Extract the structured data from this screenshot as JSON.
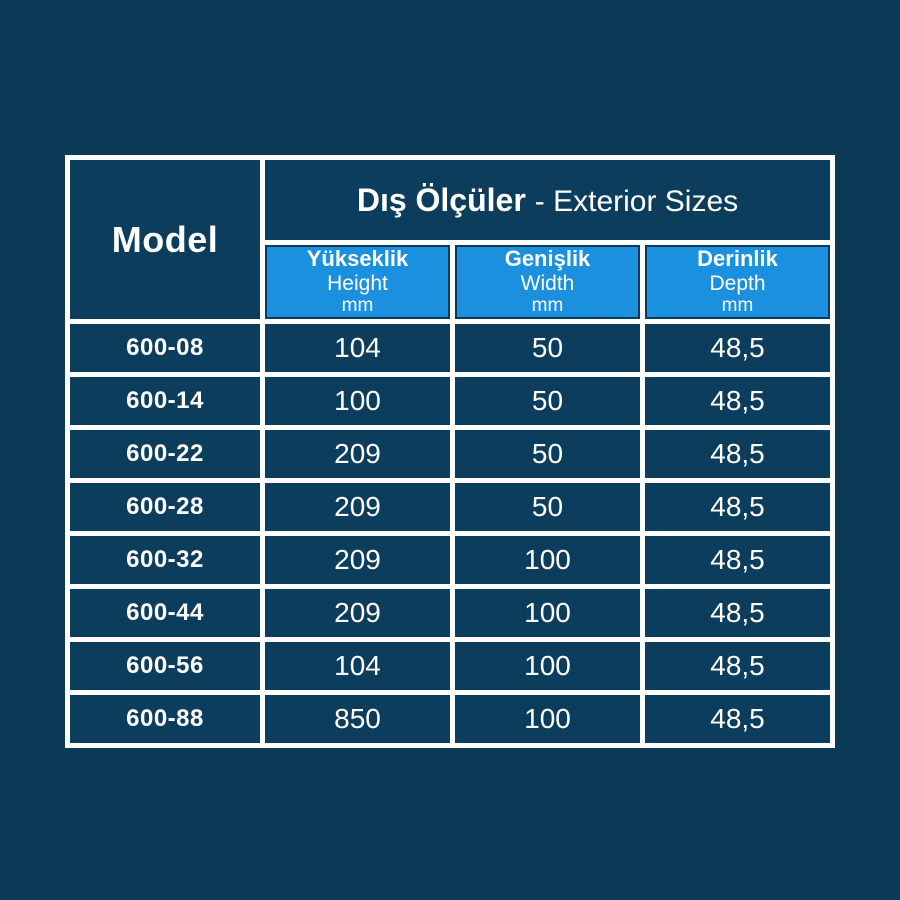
{
  "page": {
    "background": "#0b3a57"
  },
  "table": {
    "colors": {
      "cell_background": "#0d3d5c",
      "grid": "#ffffff",
      "subheader_background": "#1b90de",
      "text": "#ffffff"
    },
    "header": {
      "model_label": "Model",
      "title_bold": "Dış Ölçüler",
      "title_light": "- Exterior Sizes"
    },
    "subheaders": [
      {
        "tr": "Yükseklik",
        "en": "Height",
        "unit": "mm"
      },
      {
        "tr": "Genişlik",
        "en": "Width",
        "unit": "mm"
      },
      {
        "tr": "Derinlik",
        "en": "Depth",
        "unit": "mm"
      }
    ],
    "rows": [
      {
        "model": "600-08",
        "height": "104",
        "width": "50",
        "depth": "48,5"
      },
      {
        "model": "600-14",
        "height": "100",
        "width": "50",
        "depth": "48,5"
      },
      {
        "model": "600-22",
        "height": "209",
        "width": "50",
        "depth": "48,5"
      },
      {
        "model": "600-28",
        "height": "209",
        "width": "50",
        "depth": "48,5"
      },
      {
        "model": "600-32",
        "height": "209",
        "width": "100",
        "depth": "48,5"
      },
      {
        "model": "600-44",
        "height": "209",
        "width": "100",
        "depth": "48,5"
      },
      {
        "model": "600-56",
        "height": "104",
        "width": "100",
        "depth": "48,5"
      },
      {
        "model": "600-88",
        "height": "850",
        "width": "100",
        "depth": "48,5"
      }
    ]
  }
}
